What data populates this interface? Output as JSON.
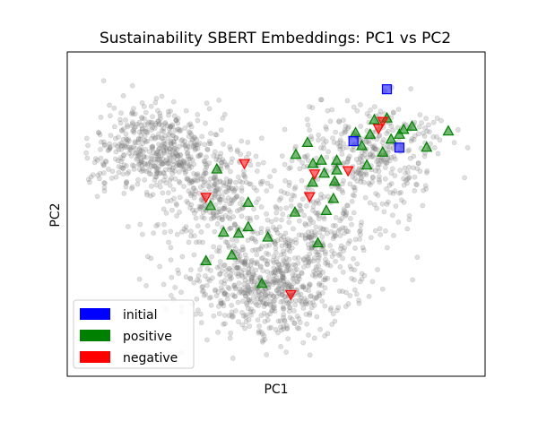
{
  "chart_data": {
    "type": "scatter",
    "title": "Sustainability SBERT Embeddings: PC1 vs PC2",
    "xlabel": "PC1",
    "ylabel": "PC2",
    "xlim": [
      0,
      1
    ],
    "ylim": [
      0,
      1
    ],
    "xticks": false,
    "yticks": false,
    "grid": false,
    "legend_position": "lower-left",
    "background": {
      "name": "",
      "color": "#808080",
      "marker": "circle",
      "opacity": 0.25,
      "count": 2000,
      "note": "dense gray point cloud shaped like a wide 'V' with lobes upper-left, lower-middle and upper-right"
    },
    "series": [
      {
        "name": "initial",
        "color": "#0000ff",
        "marker": "square",
        "points": [
          {
            "x": 0.765,
            "y": 0.885
          },
          {
            "x": 0.685,
            "y": 0.725
          },
          {
            "x": 0.795,
            "y": 0.705
          }
        ]
      },
      {
        "name": "positive",
        "color": "#008000",
        "marker": "triangle-up",
        "points": [
          {
            "x": 0.725,
            "y": 0.745
          },
          {
            "x": 0.735,
            "y": 0.79
          },
          {
            "x": 0.765,
            "y": 0.795
          },
          {
            "x": 0.775,
            "y": 0.73
          },
          {
            "x": 0.795,
            "y": 0.745
          },
          {
            "x": 0.825,
            "y": 0.77
          },
          {
            "x": 0.805,
            "y": 0.76
          },
          {
            "x": 0.86,
            "y": 0.705
          },
          {
            "x": 0.912,
            "y": 0.755
          },
          {
            "x": 0.755,
            "y": 0.69
          },
          {
            "x": 0.717,
            "y": 0.65
          },
          {
            "x": 0.69,
            "y": 0.75
          },
          {
            "x": 0.705,
            "y": 0.71
          },
          {
            "x": 0.645,
            "y": 0.665
          },
          {
            "x": 0.575,
            "y": 0.72
          },
          {
            "x": 0.547,
            "y": 0.683
          },
          {
            "x": 0.588,
            "y": 0.655
          },
          {
            "x": 0.608,
            "y": 0.665
          },
          {
            "x": 0.645,
            "y": 0.635
          },
          {
            "x": 0.615,
            "y": 0.625
          },
          {
            "x": 0.64,
            "y": 0.6
          },
          {
            "x": 0.587,
            "y": 0.597
          },
          {
            "x": 0.637,
            "y": 0.547
          },
          {
            "x": 0.62,
            "y": 0.51
          },
          {
            "x": 0.545,
            "y": 0.505
          },
          {
            "x": 0.48,
            "y": 0.428
          },
          {
            "x": 0.358,
            "y": 0.638
          },
          {
            "x": 0.343,
            "y": 0.525
          },
          {
            "x": 0.433,
            "y": 0.535
          },
          {
            "x": 0.433,
            "y": 0.46
          },
          {
            "x": 0.41,
            "y": 0.44
          },
          {
            "x": 0.374,
            "y": 0.443
          },
          {
            "x": 0.394,
            "y": 0.373
          },
          {
            "x": 0.332,
            "y": 0.355
          },
          {
            "x": 0.466,
            "y": 0.285
          },
          {
            "x": 0.6,
            "y": 0.41
          }
        ]
      },
      {
        "name": "negative",
        "color": "#ff0000",
        "marker": "triangle-down",
        "points": [
          {
            "x": 0.755,
            "y": 0.787
          },
          {
            "x": 0.745,
            "y": 0.765
          },
          {
            "x": 0.672,
            "y": 0.635
          },
          {
            "x": 0.592,
            "y": 0.625
          },
          {
            "x": 0.58,
            "y": 0.555
          },
          {
            "x": 0.424,
            "y": 0.657
          },
          {
            "x": 0.332,
            "y": 0.553
          },
          {
            "x": 0.535,
            "y": 0.253
          }
        ]
      }
    ]
  }
}
